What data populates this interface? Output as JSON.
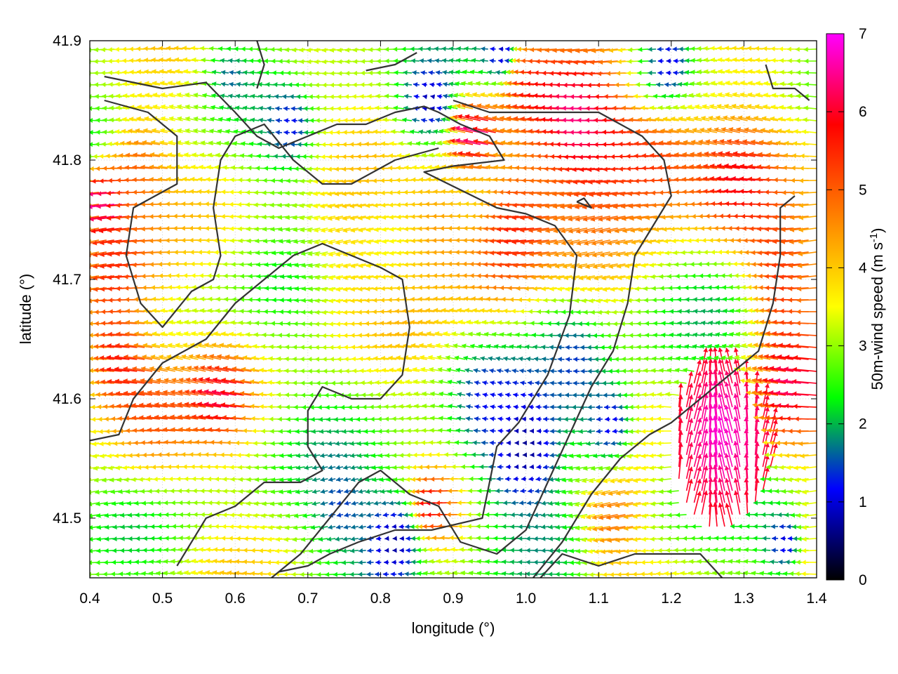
{
  "chart_data": {
    "type": "vector-field",
    "xlabel": "longitude (°)",
    "ylabel": "latitude (°)",
    "xlim": [
      0.4,
      1.4
    ],
    "ylim": [
      41.45,
      41.9
    ],
    "xticks": [
      0.4,
      0.5,
      0.6,
      0.7,
      0.8,
      0.9,
      1.0,
      1.1,
      1.2,
      1.3,
      1.4
    ],
    "xtick_labels": [
      "0.4",
      "0.5",
      "0.6",
      "0.7",
      "0.8",
      "0.9",
      "1.0",
      "1.1",
      "1.2",
      "1.3",
      "1.4"
    ],
    "yticks": [
      41.5,
      41.6,
      41.7,
      41.8,
      41.9
    ],
    "ytick_labels": [
      "41.5",
      "41.6",
      "41.7",
      "41.8",
      "41.9"
    ],
    "grid": true,
    "colorbar": {
      "title_main": "50m-wind speed (m s",
      "title_sup": "-1",
      "title_end": ")",
      "range": [
        0,
        7
      ],
      "ticks": [
        0,
        1,
        2,
        3,
        4,
        5,
        6,
        7
      ],
      "tick_labels": [
        "0",
        "1",
        "2",
        "3",
        "4",
        "5",
        "6",
        "7"
      ],
      "colors": [
        "#000000",
        "#0000ff",
        "#00ff00",
        "#ffff00",
        "#ff8000",
        "#ff0000",
        "#ff00ff"
      ]
    },
    "contour_color": "#333333",
    "contours": [
      [
        [
          0.42,
          41.87
        ],
        [
          0.5,
          41.86
        ],
        [
          0.56,
          41.865
        ],
        [
          0.6,
          41.84
        ],
        [
          0.63,
          41.82
        ],
        [
          0.66,
          41.81
        ],
        [
          0.7,
          41.82
        ],
        [
          0.74,
          41.83
        ],
        [
          0.78,
          41.83
        ],
        [
          0.82,
          41.84
        ],
        [
          0.86,
          41.845
        ],
        [
          0.88,
          41.84
        ],
        [
          0.91,
          41.83
        ],
        [
          0.95,
          41.82
        ],
        [
          0.97,
          41.8
        ],
        [
          0.9,
          41.795
        ],
        [
          0.86,
          41.79
        ],
        [
          0.91,
          41.775
        ],
        [
          0.96,
          41.76
        ],
        [
          1.0,
          41.755
        ],
        [
          1.04,
          41.745
        ],
        [
          1.07,
          41.72
        ],
        [
          1.06,
          41.67
        ],
        [
          1.03,
          41.62
        ],
        [
          0.99,
          41.58
        ],
        [
          0.96,
          41.56
        ],
        [
          0.94,
          41.5
        ],
        [
          0.87,
          41.49
        ],
        [
          0.82,
          41.49
        ],
        [
          0.77,
          41.48
        ],
        [
          0.73,
          41.47
        ],
        [
          0.7,
          41.46
        ],
        [
          0.66,
          41.455
        ]
      ],
      [
        [
          0.4,
          41.565
        ],
        [
          0.44,
          41.57
        ],
        [
          0.46,
          41.6
        ],
        [
          0.5,
          41.63
        ],
        [
          0.56,
          41.65
        ],
        [
          0.6,
          41.68
        ],
        [
          0.64,
          41.7
        ],
        [
          0.68,
          41.72
        ],
        [
          0.72,
          41.73
        ],
        [
          0.76,
          41.72
        ],
        [
          0.8,
          41.71
        ],
        [
          0.83,
          41.7
        ],
        [
          0.84,
          41.66
        ],
        [
          0.83,
          41.62
        ],
        [
          0.8,
          41.6
        ],
        [
          0.76,
          41.6
        ],
        [
          0.72,
          41.61
        ],
        [
          0.7,
          41.59
        ],
        [
          0.7,
          41.56
        ],
        [
          0.72,
          41.54
        ],
        [
          0.69,
          41.53
        ],
        [
          0.64,
          41.53
        ],
        [
          0.6,
          41.51
        ],
        [
          0.56,
          41.5
        ],
        [
          0.52,
          41.46
        ]
      ],
      [
        [
          0.42,
          41.85
        ],
        [
          0.48,
          41.84
        ],
        [
          0.52,
          41.82
        ],
        [
          0.52,
          41.78
        ],
        [
          0.49,
          41.77
        ],
        [
          0.46,
          41.76
        ],
        [
          0.45,
          41.72
        ],
        [
          0.47,
          41.68
        ],
        [
          0.5,
          41.66
        ],
        [
          0.54,
          41.69
        ],
        [
          0.57,
          41.7
        ],
        [
          0.58,
          41.72
        ],
        [
          0.57,
          41.76
        ],
        [
          0.58,
          41.8
        ],
        [
          0.6,
          41.82
        ],
        [
          0.64,
          41.83
        ],
        [
          0.68,
          41.8
        ],
        [
          0.72,
          41.78
        ],
        [
          0.76,
          41.78
        ],
        [
          0.82,
          41.8
        ],
        [
          0.88,
          41.81
        ]
      ],
      [
        [
          0.65,
          41.45
        ],
        [
          0.69,
          41.47
        ],
        [
          0.73,
          41.5
        ],
        [
          0.77,
          41.53
        ],
        [
          0.8,
          41.54
        ],
        [
          0.84,
          41.52
        ],
        [
          0.88,
          41.51
        ],
        [
          0.91,
          41.48
        ],
        [
          0.96,
          41.47
        ],
        [
          1.0,
          41.49
        ],
        [
          1.03,
          41.53
        ],
        [
          1.06,
          41.57
        ],
        [
          1.09,
          41.61
        ],
        [
          1.12,
          41.64
        ],
        [
          1.14,
          41.68
        ],
        [
          1.15,
          41.72
        ],
        [
          1.17,
          41.74
        ],
        [
          1.19,
          41.76
        ],
        [
          1.2,
          41.77
        ],
        [
          1.19,
          41.8
        ],
        [
          1.16,
          41.82
        ],
        [
          1.13,
          41.83
        ],
        [
          1.1,
          41.84
        ],
        [
          1.05,
          41.84
        ],
        [
          1.0,
          41.84
        ],
        [
          0.95,
          41.84
        ],
        [
          0.9,
          41.85
        ]
      ],
      [
        [
          1.01,
          41.45
        ],
        [
          1.05,
          41.48
        ],
        [
          1.09,
          41.52
        ],
        [
          1.13,
          41.55
        ],
        [
          1.17,
          41.57
        ],
        [
          1.2,
          41.58
        ],
        [
          1.24,
          41.6
        ],
        [
          1.28,
          41.62
        ],
        [
          1.32,
          41.64
        ],
        [
          1.34,
          41.68
        ],
        [
          1.35,
          41.72
        ],
        [
          1.35,
          41.76
        ],
        [
          1.37,
          41.77
        ]
      ],
      [
        [
          1.02,
          41.45
        ],
        [
          1.05,
          41.47
        ],
        [
          1.1,
          41.46
        ],
        [
          1.15,
          41.47
        ],
        [
          1.2,
          41.47
        ],
        [
          1.24,
          41.47
        ],
        [
          1.27,
          41.45
        ]
      ],
      [
        [
          1.33,
          41.88
        ],
        [
          1.34,
          41.86
        ],
        [
          1.37,
          41.86
        ],
        [
          1.39,
          41.85
        ]
      ],
      [
        [
          0.63,
          41.9
        ],
        [
          0.64,
          41.88
        ],
        [
          0.63,
          41.86
        ]
      ],
      [
        [
          0.78,
          41.875
        ],
        [
          0.82,
          41.88
        ],
        [
          0.85,
          41.89
        ]
      ],
      [
        [
          1.07,
          41.765
        ],
        [
          1.09,
          41.76
        ],
        [
          1.08,
          41.768
        ],
        [
          1.07,
          41.765
        ]
      ]
    ],
    "vectors": []
  }
}
